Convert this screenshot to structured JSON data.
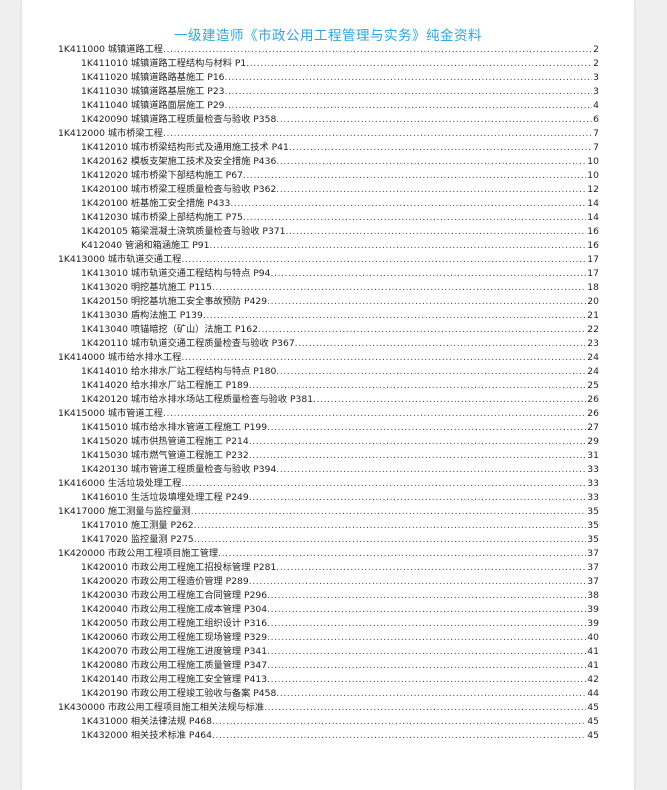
{
  "document": {
    "title": "一级建造师《市政公用工程管理与实务》纯金资料",
    "toc": [
      {
        "level": 1,
        "label": "1K411000 城镇道路工程",
        "page": "2"
      },
      {
        "level": 2,
        "label": "1K411010 城镇道路工程结构与材料 P1",
        "page": "2"
      },
      {
        "level": 2,
        "label": "1K411020 城镇道路路基施工 P16",
        "page": "3"
      },
      {
        "level": 2,
        "label": "1K411030 城镇道路基层施工 P23",
        "page": "3"
      },
      {
        "level": 2,
        "label": "1K411040 城镇道路面层施工 P29",
        "page": "4"
      },
      {
        "level": 2,
        "label": "1K420090 城镇道路工程质量检查与验收 P358",
        "page": "6"
      },
      {
        "level": 1,
        "label": "1K412000 城市桥梁工程",
        "page": "7"
      },
      {
        "level": 2,
        "label": "1K412010 城市桥梁结构形式及通用施工技术 P41",
        "page": "7"
      },
      {
        "level": 2,
        "label": "1K420162 模板支架施工技术及安全措施  P436",
        "page": "10"
      },
      {
        "level": 2,
        "label": "1K412020 城市桥梁下部结构施工 P67",
        "page": "10"
      },
      {
        "level": 2,
        "label": "1K420100 城市桥梁工程质量检查与验收 P362",
        "page": "12"
      },
      {
        "level": 2,
        "label": "1K420100 桩基施工安全措施  P433",
        "page": "14"
      },
      {
        "level": 2,
        "label": "1K412030 城市桥梁上部结构施工 P75",
        "page": "14"
      },
      {
        "level": 2,
        "label": "1K420105  箱梁混凝土浇筑质量检查与验收  P371",
        "page": "16"
      },
      {
        "level": 2,
        "label": "K412040 管涵和箱涵施工 P91",
        "page": "16"
      },
      {
        "level": 1,
        "label": "1K413000 城市轨道交通工程",
        "page": "17"
      },
      {
        "level": 2,
        "label": "1K413010 城市轨道交通工程结构与特点 P94",
        "page": "17"
      },
      {
        "level": 2,
        "label": "1K413020 明挖基坑施工 P115",
        "page": "18"
      },
      {
        "level": 2,
        "label": "1K420150 明挖基坑施工安全事故预防 P429",
        "page": "20"
      },
      {
        "level": 2,
        "label": "1K413030 盾构法施工 P139",
        "page": "21"
      },
      {
        "level": 2,
        "label": "1K413040 喷锚暗挖（矿山）法施工 P162",
        "page": "22"
      },
      {
        "level": 2,
        "label": "1K420110 城市轨道交通工程质量检查与验收 P367",
        "page": "23"
      },
      {
        "level": 1,
        "label": "1K414000 城市给水排水工程",
        "page": "24"
      },
      {
        "level": 2,
        "label": "1K414010 给水排水厂站工程结构与特点 P180",
        "page": "24"
      },
      {
        "level": 2,
        "label": "1K414020 给水排水厂站工程施工 P189",
        "page": "25"
      },
      {
        "level": 2,
        "label": "1K420120 城市给水排水场站工程质量检查与验收 P381",
        "page": "26"
      },
      {
        "level": 1,
        "label": "1K415000 城市管道工程",
        "page": "26"
      },
      {
        "level": 2,
        "label": "1K415010 城市给水排水管道工程施工 P199",
        "page": "27"
      },
      {
        "level": 2,
        "label": "1K415020 城市供热管道工程施工 P214",
        "page": "29"
      },
      {
        "level": 2,
        "label": "1K415030 城市燃气管道工程施工 P232",
        "page": "31"
      },
      {
        "level": 2,
        "label": "1K420130 城市管道工程质量检查与验收 P394",
        "page": "33"
      },
      {
        "level": 1,
        "label": "1K416000 生活垃圾处理工程",
        "page": "33"
      },
      {
        "level": 2,
        "label": "1K416010 生活垃圾填埋处理工程 P249",
        "page": "33"
      },
      {
        "level": 1,
        "label": "1K417000 施工测量与监控量测",
        "page": "35"
      },
      {
        "level": 2,
        "label": "1K417010 施工测量 P262",
        "page": "35"
      },
      {
        "level": 2,
        "label": "1K417020 监控量测 P275",
        "page": "35"
      },
      {
        "level": 1,
        "label": "1K420000 市政公用工程项目施工管理",
        "page": "37"
      },
      {
        "level": 2,
        "label": "1K420010 市政公用工程施工招投标管理 P281",
        "page": "37"
      },
      {
        "level": 2,
        "label": "1K420020 市政公用工程造价管理 P289",
        "page": "37"
      },
      {
        "level": 2,
        "label": "1K420030 市政公用工程施工合同管理 P296",
        "page": "38"
      },
      {
        "level": 2,
        "label": "1K420040 市政公用工程施工成本管理 P304",
        "page": "39"
      },
      {
        "level": 2,
        "label": "1K420050 市政公用工程施工组织设计 P316",
        "page": "39"
      },
      {
        "level": 2,
        "label": "1K420060 市政公用工程施工现场管理 P329",
        "page": "40"
      },
      {
        "level": 2,
        "label": "1K420070 市政公用工程施工进度管理 P341",
        "page": "41"
      },
      {
        "level": 2,
        "label": "1K420080 市政公用工程施工质量管理 P347",
        "page": "41"
      },
      {
        "level": 2,
        "label": "1K420140 市政公用工程施工安全管理 P413",
        "page": "42"
      },
      {
        "level": 2,
        "label": "1K420190 市政公用工程竣工验收与备案 P458",
        "page": "44"
      },
      {
        "level": 1,
        "label": "1K430000 市政公用工程项目施工相关法规与标准",
        "page": "45"
      },
      {
        "level": 2,
        "label": "1K431000 相关法律法规 P468",
        "page": "45"
      },
      {
        "level": 2,
        "label": "1K432000 相关技术标准 P464",
        "page": "45"
      }
    ],
    "colors": {
      "title": "#2ea6df",
      "background": "#efefef",
      "page": "#ffffff"
    }
  }
}
